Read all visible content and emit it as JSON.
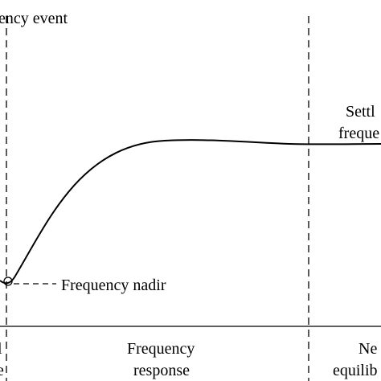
{
  "labels": {
    "event": "ency event",
    "settling_line1": "Settl",
    "settling_line2": "freque",
    "nadir": "Frequency nadir",
    "response_line1": "Frequency",
    "response_line2": "response",
    "equilibrium_line1": "Ne",
    "equilibrium_line2": "equilib",
    "left_phase_line1": "l",
    "left_phase_line2": "e"
  },
  "colors": {
    "stroke": "#000000",
    "background": "#ffffff"
  }
}
